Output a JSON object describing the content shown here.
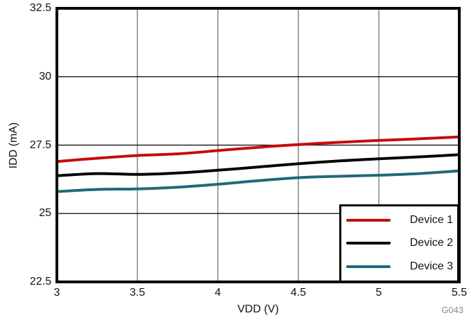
{
  "chart_data": {
    "type": "line",
    "title": "",
    "xlabel": "VDD (V)",
    "ylabel": "IDD (mA)",
    "xlim": [
      3,
      5.5
    ],
    "ylim": [
      22.5,
      32.5
    ],
    "x_tick_values": [
      3,
      3.5,
      4,
      4.5,
      5,
      5.5
    ],
    "x_tick_labels": [
      "3",
      "3.5",
      "4",
      "4.5",
      "5",
      "5.5"
    ],
    "y_tick_values": [
      22.5,
      25,
      27.5,
      30,
      32.5
    ],
    "y_tick_labels": [
      "22.5",
      "25",
      "27.5",
      "30",
      "32.5"
    ],
    "grid": true,
    "legend_position": "bottom-right",
    "x": [
      3,
      3.25,
      3.5,
      3.75,
      4,
      4.25,
      4.5,
      4.75,
      5,
      5.25,
      5.5
    ],
    "series": [
      {
        "name": "Device 1",
        "color": "#c60c0c",
        "values": [
          26.9,
          27.02,
          27.12,
          27.18,
          27.3,
          27.42,
          27.52,
          27.6,
          27.67,
          27.73,
          27.8
        ]
      },
      {
        "name": "Device 2",
        "color": "#000000",
        "values": [
          26.38,
          26.46,
          26.43,
          26.48,
          26.58,
          26.7,
          26.82,
          26.92,
          27.0,
          27.07,
          27.15
        ]
      },
      {
        "name": "Device 3",
        "color": "#21697a",
        "values": [
          25.8,
          25.88,
          25.9,
          25.96,
          26.07,
          26.2,
          26.31,
          26.36,
          26.4,
          26.46,
          26.56
        ]
      }
    ],
    "watermark": "G043",
    "colors": {
      "vertical_grid": "#8c8c8c",
      "horizontal_grid": "#000000",
      "frame": "#000000"
    }
  }
}
